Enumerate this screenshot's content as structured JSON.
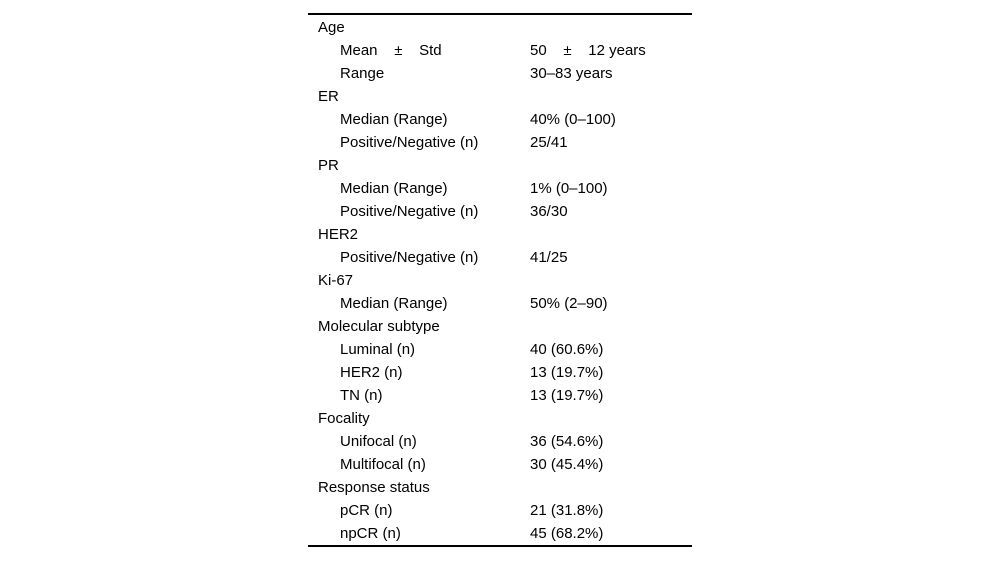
{
  "page": {
    "background": "#ffffff",
    "text_color": "#000000",
    "rule_color": "#000000"
  },
  "table": {
    "description": "patient-characteristics-table",
    "rows": [
      {
        "label": "Age",
        "value": "",
        "indent": 0
      },
      {
        "label": "Mean    ±    Std",
        "value": "50    ±    12 years",
        "indent": 1
      },
      {
        "label": "Range",
        "value": "30–83 years",
        "indent": 1
      },
      {
        "label": "ER",
        "value": "",
        "indent": 0
      },
      {
        "label": "Median (Range)",
        "value": "40% (0–100)",
        "indent": 1
      },
      {
        "label": "Positive/Negative (n)",
        "value": "25/41",
        "indent": 1
      },
      {
        "label": "PR",
        "value": "",
        "indent": 0
      },
      {
        "label": "Median (Range)",
        "value": "1% (0–100)",
        "indent": 1
      },
      {
        "label": "Positive/Negative (n)",
        "value": "36/30",
        "indent": 1
      },
      {
        "label": "HER2",
        "value": "",
        "indent": 0
      },
      {
        "label": "Positive/Negative (n)",
        "value": "41/25",
        "indent": 1
      },
      {
        "label": "Ki-67",
        "value": "",
        "indent": 0
      },
      {
        "label": "Median (Range)",
        "value": "50% (2–90)",
        "indent": 1
      },
      {
        "label": "Molecular subtype",
        "value": "",
        "indent": 0
      },
      {
        "label": "Luminal (n)",
        "value": "40 (60.6%)",
        "indent": 1
      },
      {
        "label": "HER2 (n)",
        "value": "13 (19.7%)",
        "indent": 1
      },
      {
        "label": "TN (n)",
        "value": "13 (19.7%)",
        "indent": 1
      },
      {
        "label": "Focality",
        "value": "",
        "indent": 0
      },
      {
        "label": "Unifocal (n)",
        "value": "36 (54.6%)",
        "indent": 1
      },
      {
        "label": "Multifocal (n)",
        "value": "30 (45.4%)",
        "indent": 1
      },
      {
        "label": "Response status",
        "value": "",
        "indent": 0
      },
      {
        "label": "pCR (n)",
        "value": "21 (31.8%)",
        "indent": 1
      },
      {
        "label": "npCR (n)",
        "value": "45 (68.2%)",
        "indent": 1
      }
    ]
  }
}
